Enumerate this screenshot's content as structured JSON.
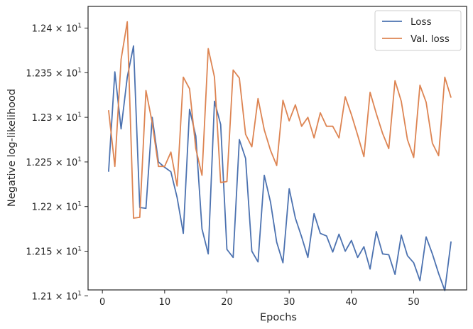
{
  "chart_data": {
    "type": "line",
    "title": "",
    "xlabel": "Epochs",
    "ylabel": "Negative log-likelihood",
    "xlim": [
      -2.3,
      58.5
    ],
    "ylim": [
      12.1066,
      12.4243
    ],
    "x_ticks": [
      0,
      10,
      20,
      30,
      40,
      50
    ],
    "y_ticks": [
      {
        "value": 12.1,
        "mantissa": "1.21",
        "base": "10",
        "exponent": "1"
      },
      {
        "value": 12.15,
        "mantissa": "1.215",
        "base": "10",
        "exponent": "1"
      },
      {
        "value": 12.2,
        "mantissa": "1.22",
        "base": "10",
        "exponent": "1"
      },
      {
        "value": 12.25,
        "mantissa": "1.225",
        "base": "10",
        "exponent": "1"
      },
      {
        "value": 12.3,
        "mantissa": "1.23",
        "base": "10",
        "exponent": "1"
      },
      {
        "value": 12.35,
        "mantissa": "1.235",
        "base": "10",
        "exponent": "1"
      },
      {
        "value": 12.4,
        "mantissa": "1.24",
        "base": "10",
        "exponent": "1"
      }
    ],
    "grid": false,
    "legend_position": "top-right",
    "x": [
      1,
      2,
      3,
      4,
      5,
      6,
      7,
      8,
      9,
      10,
      11,
      12,
      13,
      14,
      15,
      16,
      17,
      18,
      19,
      20,
      21,
      22,
      23,
      24,
      25,
      26,
      27,
      28,
      29,
      30,
      31,
      32,
      33,
      34,
      35,
      36,
      37,
      38,
      39,
      40,
      41,
      42,
      43,
      44,
      45,
      46,
      47,
      48,
      49,
      50,
      51,
      52,
      53,
      54,
      55,
      56
    ],
    "series": [
      {
        "name": "Loss",
        "color": "#4c72b0",
        "values": [
          12.239,
          12.351,
          12.287,
          12.345,
          12.38,
          12.199,
          12.198,
          12.3,
          12.25,
          12.244,
          12.239,
          12.21,
          12.17,
          12.309,
          12.279,
          12.175,
          12.147,
          12.318,
          12.292,
          12.152,
          12.143,
          12.275,
          12.254,
          12.15,
          12.138,
          12.235,
          12.205,
          12.16,
          12.137,
          12.22,
          12.187,
          12.166,
          12.143,
          12.192,
          12.17,
          12.167,
          12.149,
          12.169,
          12.15,
          12.162,
          12.143,
          12.155,
          12.13,
          12.172,
          12.147,
          12.146,
          12.124,
          12.168,
          12.145,
          12.137,
          12.117,
          12.166,
          12.147,
          12.125,
          12.106,
          12.161
        ]
      },
      {
        "name": "Val. loss",
        "color": "#dd8452",
        "values": [
          12.308,
          12.245,
          12.365,
          12.407,
          12.187,
          12.188,
          12.33,
          12.294,
          12.245,
          12.245,
          12.261,
          12.223,
          12.345,
          12.332,
          12.265,
          12.235,
          12.377,
          12.345,
          12.227,
          12.228,
          12.353,
          12.344,
          12.281,
          12.267,
          12.321,
          12.286,
          12.263,
          12.246,
          12.319,
          12.296,
          12.314,
          12.29,
          12.3,
          12.277,
          12.305,
          12.29,
          12.29,
          12.277,
          12.323,
          12.303,
          12.28,
          12.256,
          12.328,
          12.304,
          12.282,
          12.265,
          12.341,
          12.318,
          12.275,
          12.255,
          12.336,
          12.317,
          12.271,
          12.257,
          12.345,
          12.322
        ]
      }
    ]
  }
}
